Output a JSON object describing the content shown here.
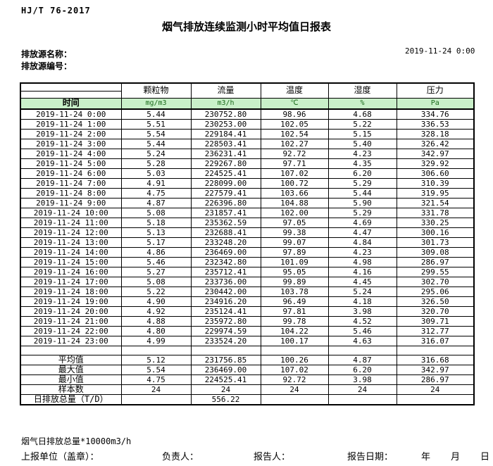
{
  "header": {
    "standard_no": "HJ/T  76-2017",
    "title": "烟气排放连续监测小时平均值日报表",
    "source_name_label": "排放源名称：",
    "source_id_label": "排放源编号：",
    "datetime": "2019-11-24 0:00"
  },
  "table": {
    "time_header": "时间",
    "columns": [
      "颗粒物",
      "流量",
      "温度",
      "湿度",
      "压力"
    ],
    "units": [
      "mg/m3",
      "m3/h",
      "℃",
      "%",
      "Pa"
    ],
    "rows": [
      {
        "time": "2019-11-24 0:00",
        "values": [
          "5.44",
          "230752.80",
          "98.96",
          "4.68",
          "334.76"
        ]
      },
      {
        "time": "2019-11-24 1:00",
        "values": [
          "5.51",
          "230253.00",
          "102.05",
          "5.22",
          "336.53"
        ]
      },
      {
        "time": "2019-11-24 2:00",
        "values": [
          "5.54",
          "229184.41",
          "102.54",
          "5.15",
          "328.18"
        ]
      },
      {
        "time": "2019-11-24 3:00",
        "values": [
          "5.44",
          "228503.41",
          "102.27",
          "5.40",
          "326.42"
        ]
      },
      {
        "time": "2019-11-24 4:00",
        "values": [
          "5.24",
          "236231.41",
          "92.72",
          "4.23",
          "342.97"
        ]
      },
      {
        "time": "2019-11-24 5:00",
        "values": [
          "5.28",
          "229267.80",
          "97.71",
          "4.35",
          "329.92"
        ]
      },
      {
        "time": "2019-11-24 6:00",
        "values": [
          "5.03",
          "224525.41",
          "107.02",
          "6.20",
          "306.60"
        ]
      },
      {
        "time": "2019-11-24 7:00",
        "values": [
          "4.91",
          "228099.00",
          "100.72",
          "5.29",
          "310.39"
        ]
      },
      {
        "time": "2019-11-24 8:00",
        "values": [
          "4.75",
          "227579.41",
          "103.66",
          "5.44",
          "319.95"
        ]
      },
      {
        "time": "2019-11-24 9:00",
        "values": [
          "4.87",
          "226396.80",
          "104.88",
          "5.90",
          "321.54"
        ]
      },
      {
        "time": "2019-11-24 10:00",
        "values": [
          "5.08",
          "231857.41",
          "102.00",
          "5.29",
          "331.78"
        ]
      },
      {
        "time": "2019-11-24 11:00",
        "values": [
          "5.18",
          "235362.59",
          "97.05",
          "4.69",
          "330.25"
        ]
      },
      {
        "time": "2019-11-24 12:00",
        "values": [
          "5.13",
          "232688.41",
          "99.38",
          "4.47",
          "300.16"
        ]
      },
      {
        "time": "2019-11-24 13:00",
        "values": [
          "5.17",
          "233248.20",
          "99.07",
          "4.84",
          "301.73"
        ]
      },
      {
        "time": "2019-11-24 14:00",
        "values": [
          "4.86",
          "236469.00",
          "97.89",
          "4.23",
          "309.08"
        ]
      },
      {
        "time": "2019-11-24 15:00",
        "values": [
          "5.46",
          "232342.80",
          "101.09",
          "4.98",
          "286.97"
        ]
      },
      {
        "time": "2019-11-24 16:00",
        "values": [
          "5.27",
          "235712.41",
          "95.05",
          "4.16",
          "299.55"
        ]
      },
      {
        "time": "2019-11-24 17:00",
        "values": [
          "5.08",
          "233736.00",
          "99.89",
          "4.45",
          "302.70"
        ]
      },
      {
        "time": "2019-11-24 18:00",
        "values": [
          "5.22",
          "230442.00",
          "103.78",
          "5.24",
          "295.06"
        ]
      },
      {
        "time": "2019-11-24 19:00",
        "values": [
          "4.90",
          "234916.20",
          "96.49",
          "4.18",
          "326.50"
        ]
      },
      {
        "time": "2019-11-24 20:00",
        "values": [
          "4.92",
          "235124.41",
          "97.81",
          "3.98",
          "320.70"
        ]
      },
      {
        "time": "2019-11-24 21:00",
        "values": [
          "4.88",
          "235972.80",
          "99.78",
          "4.52",
          "309.71"
        ]
      },
      {
        "time": "2019-11-24 22:00",
        "values": [
          "4.80",
          "229974.59",
          "104.22",
          "5.46",
          "312.77"
        ]
      },
      {
        "time": "2019-11-24 23:00",
        "values": [
          "4.99",
          "233524.20",
          "100.17",
          "4.63",
          "316.07"
        ]
      }
    ],
    "summary": [
      {
        "label": "平均值",
        "values": [
          "5.12",
          "231756.85",
          "100.26",
          "4.87",
          "316.68"
        ]
      },
      {
        "label": "最大值",
        "values": [
          "5.54",
          "236469.00",
          "107.02",
          "6.20",
          "342.97"
        ]
      },
      {
        "label": "最小值",
        "values": [
          "4.75",
          "224525.41",
          "92.72",
          "3.98",
          "286.97"
        ]
      },
      {
        "label": "样本数",
        "values": [
          "24",
          "24",
          "24",
          "24",
          "24"
        ]
      },
      {
        "label": "日排放总量（T/D）",
        "values": [
          "",
          "556.22",
          "",
          "",
          ""
        ]
      }
    ]
  },
  "footer": {
    "note": "烟气日排放总量*10000m3/h",
    "report_unit_label": "上报单位（盖章）：",
    "responsible_label": "负责人：",
    "reporter_label": "报告人：",
    "report_date_label": "报告日期：",
    "year_label": "年",
    "month_label": "月",
    "day_label": "日"
  },
  "colors": {
    "header_row_green": "#C9F0C9",
    "unit_text_green": "#1B6B1B",
    "border_black": "#000000"
  }
}
